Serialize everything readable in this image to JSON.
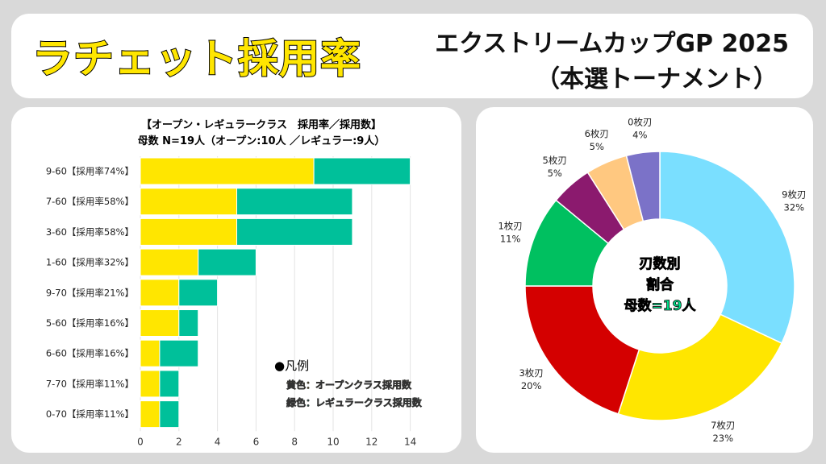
{
  "header": {
    "title": "ラチェット採用率",
    "subtitle_line1": "エクストリームカップGP 2025",
    "subtitle_line2": "（本選トーナメント）"
  },
  "chart_data": [
    {
      "type": "bar",
      "orientation": "horizontal",
      "stacked": true,
      "title": "【オープン・レギュラークラス　採用率／採用数】",
      "subtitle": "母数 N=19人（オープン:10人 ／レギュラー:9人）",
      "categories": [
        "9-60【採用率74%】",
        "7-60【採用率58%】",
        "3-60【採用率58%】",
        "1-60【採用率32%】",
        "9-70【採用率21%】",
        "5-60【採用率16%】",
        "6-60【採用率16%】",
        "7-70【採用率11%】",
        "0-70【採用率11%】"
      ],
      "series": [
        {
          "name": "黄色：オープンクラス採用数",
          "color": "#ffe600",
          "values": [
            9,
            5,
            5,
            3,
            2,
            2,
            1,
            1,
            1
          ]
        },
        {
          "name": "緑色：レギュラークラス採用数",
          "color": "#00c09a",
          "values": [
            5,
            6,
            6,
            3,
            2,
            1,
            2,
            1,
            1
          ]
        }
      ],
      "xlim": [
        0,
        15
      ],
      "xticks": [
        0,
        2,
        4,
        6,
        8,
        10,
        12,
        14
      ],
      "grid": true,
      "legend_title": "●凡例",
      "legend_position": "bottom-right"
    },
    {
      "type": "pie",
      "donut": true,
      "center_text": [
        "刃数別",
        "割合",
        "母数=19人"
      ],
      "center_text_color": "#00e08a",
      "slices": [
        {
          "label": "9枚刃",
          "value": 32,
          "pct": "32%",
          "color": "#7adfff"
        },
        {
          "label": "7枚刃",
          "value": 23,
          "pct": "23%",
          "color": "#ffe600"
        },
        {
          "label": "3枚刃",
          "value": 20,
          "pct": "20%",
          "color": "#d40000"
        },
        {
          "label": "1枚刃",
          "value": 11,
          "pct": "11%",
          "color": "#00c060"
        },
        {
          "label": "5枚刃",
          "value": 5,
          "pct": "5%",
          "color": "#8b1a6e"
        },
        {
          "label": "6枚刃",
          "value": 5,
          "pct": "5%",
          "color": "#ffc880"
        },
        {
          "label": "0枚刃",
          "value": 4,
          "pct": "4%",
          "color": "#7b72c8"
        }
      ]
    }
  ]
}
